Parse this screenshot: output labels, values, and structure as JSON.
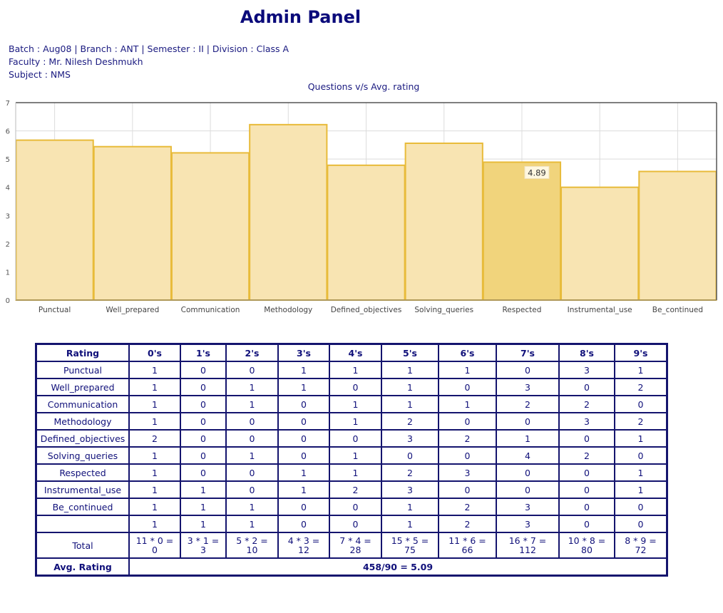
{
  "page_title": "Admin Panel",
  "info": {
    "line1": "Batch : Aug08 | Branch : ANT | Semester : II | Division : Class A",
    "line2": "Faculty : Mr. Nilesh Deshmukh",
    "line3": "Subject : NMS"
  },
  "chart_data": {
    "type": "bar",
    "title": "Questions v/s Avg. rating",
    "categories": [
      "Punctual",
      "Well_prepared",
      "Communication",
      "Methodology",
      "Defined_objectives",
      "Solving_queries",
      "Respected",
      "Instrumental_use",
      "Be_continued"
    ],
    "values": [
      5.67,
      5.44,
      5.22,
      6.22,
      4.78,
      5.56,
      4.89,
      4.0,
      4.56
    ],
    "ylim": [
      0,
      7
    ],
    "yticks": [
      "0",
      "1",
      "2",
      "3",
      "4",
      "5",
      "6",
      "7"
    ],
    "grid": true,
    "highlighted_category": "Respected",
    "tooltip": "4.89",
    "colors": {
      "fill": "#f8e4b2",
      "highlight_fill": "#f1d47c",
      "stroke": "#e8bb3a"
    }
  },
  "table": {
    "headers": [
      "Rating",
      "0's",
      "1's",
      "2's",
      "3's",
      "4's",
      "5's",
      "6's",
      "7's",
      "8's",
      "9's"
    ],
    "rows": [
      {
        "label": "Punctual",
        "values": [
          "1",
          "0",
          "0",
          "1",
          "1",
          "1",
          "1",
          "0",
          "3",
          "1"
        ]
      },
      {
        "label": "Well_prepared",
        "values": [
          "1",
          "0",
          "1",
          "1",
          "0",
          "1",
          "0",
          "3",
          "0",
          "2"
        ]
      },
      {
        "label": "Communication",
        "values": [
          "1",
          "0",
          "1",
          "0",
          "1",
          "1",
          "1",
          "2",
          "2",
          "0"
        ]
      },
      {
        "label": "Methodology",
        "values": [
          "1",
          "0",
          "0",
          "0",
          "1",
          "2",
          "0",
          "0",
          "3",
          "2"
        ]
      },
      {
        "label": "Defined_objectives",
        "values": [
          "2",
          "0",
          "0",
          "0",
          "0",
          "3",
          "2",
          "1",
          "0",
          "1"
        ]
      },
      {
        "label": "Solving_queries",
        "values": [
          "1",
          "0",
          "1",
          "0",
          "1",
          "0",
          "0",
          "4",
          "2",
          "0"
        ]
      },
      {
        "label": "Respected",
        "values": [
          "1",
          "0",
          "0",
          "1",
          "1",
          "2",
          "3",
          "0",
          "0",
          "1"
        ]
      },
      {
        "label": "Instrumental_use",
        "values": [
          "1",
          "1",
          "0",
          "1",
          "2",
          "3",
          "0",
          "0",
          "0",
          "1"
        ]
      },
      {
        "label": "Be_continued",
        "values": [
          "1",
          "1",
          "1",
          "0",
          "0",
          "1",
          "2",
          "3",
          "0",
          "0"
        ]
      },
      {
        "label": "",
        "values": [
          "1",
          "1",
          "1",
          "0",
          "0",
          "1",
          "2",
          "3",
          "0",
          "0"
        ]
      }
    ],
    "total": {
      "label": "Total",
      "cells": [
        {
          "expr": "11 * 0 =",
          "result": "0"
        },
        {
          "expr": "3 * 1 =",
          "result": "3"
        },
        {
          "expr": "5 * 2 =",
          "result": "10"
        },
        {
          "expr": "4 * 3 =",
          "result": "12"
        },
        {
          "expr": "7 * 4 =",
          "result": "28"
        },
        {
          "expr": "15 * 5 =",
          "result": "75"
        },
        {
          "expr": "11 * 6 =",
          "result": "66"
        },
        {
          "expr": "16 * 7 =",
          "result": "112"
        },
        {
          "expr": "10 * 8 =",
          "result": "80"
        },
        {
          "expr": "8 * 9 =",
          "result": "72"
        }
      ]
    },
    "avg": {
      "label": "Avg. Rating",
      "value": "458/90 = 5.09"
    }
  }
}
